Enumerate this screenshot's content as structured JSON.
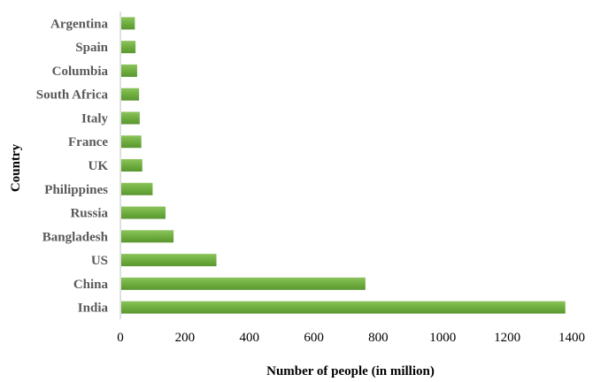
{
  "chart_data": {
    "type": "bar",
    "orientation": "horizontal",
    "categories": [
      "India",
      "China",
      "US",
      "Bangladesh",
      "Russia",
      "Philippines",
      "UK",
      "France",
      "Italy",
      "South Africa",
      "Columbia",
      "Spain",
      "Argentina"
    ],
    "values": [
      1380,
      760,
      298,
      165,
      140,
      100,
      68,
      65,
      60,
      58,
      52,
      47,
      45
    ],
    "xlabel": "Number of people (in million)",
    "ylabel": "Country",
    "xlim": [
      0,
      1400
    ],
    "xticks": [
      0,
      200,
      400,
      600,
      800,
      1000,
      1200,
      1400
    ],
    "grid": false,
    "bar_color": "#70ad47"
  }
}
